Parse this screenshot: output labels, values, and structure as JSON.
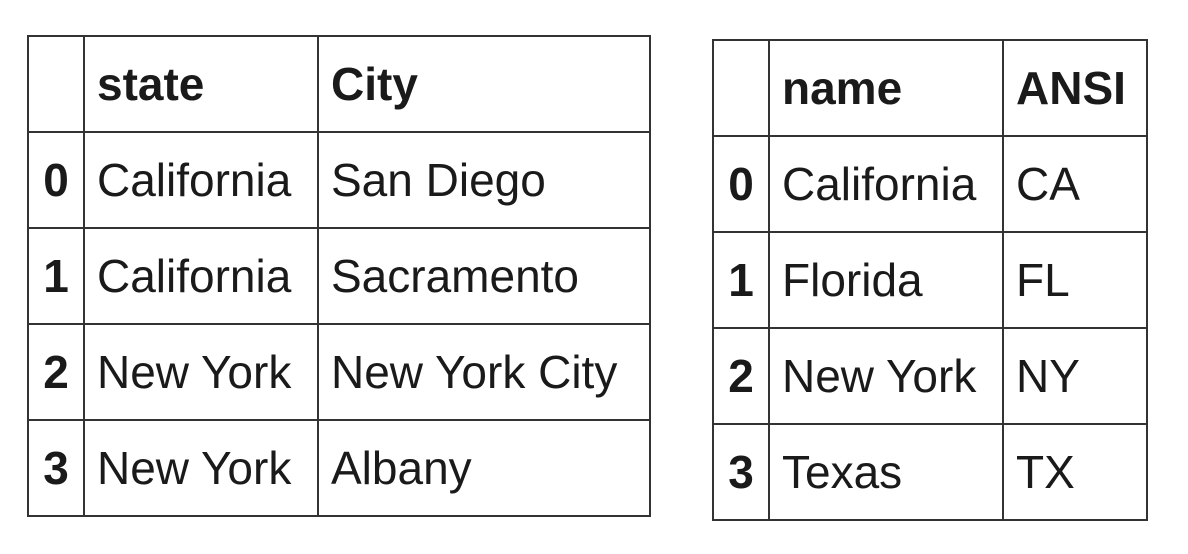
{
  "left_table": {
    "columns": [
      "",
      "state",
      "City"
    ],
    "rows": [
      {
        "index": "0",
        "cells": [
          "California",
          "San Diego"
        ]
      },
      {
        "index": "1",
        "cells": [
          "California",
          "Sacramento"
        ]
      },
      {
        "index": "2",
        "cells": [
          "New York",
          "New York City"
        ]
      },
      {
        "index": "3",
        "cells": [
          "New York",
          "Albany"
        ]
      }
    ]
  },
  "right_table": {
    "columns": [
      "",
      "name",
      "ANSI"
    ],
    "rows": [
      {
        "index": "0",
        "cells": [
          "California",
          "CA"
        ]
      },
      {
        "index": "1",
        "cells": [
          "Florida",
          "FL"
        ]
      },
      {
        "index": "2",
        "cells": [
          "New York",
          "NY"
        ]
      },
      {
        "index": "3",
        "cells": [
          "Texas",
          "TX"
        ]
      }
    ]
  },
  "colors": {
    "border": "#333333",
    "text": "#1a1a1a",
    "background": "#ffffff"
  }
}
